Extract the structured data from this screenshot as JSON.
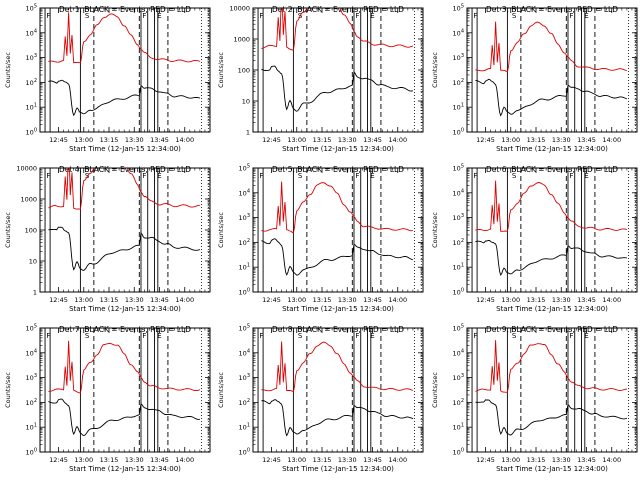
{
  "chart_data": {
    "type": "line",
    "panels": [
      {
        "title": "Det 1, BLACK = Events, RED = LLD",
        "ylabel": "Counts/sec",
        "yscale": "log",
        "ylim": [
          1,
          100000
        ],
        "ytick_labels": [
          "10^0",
          "10^1",
          "10^2",
          "10^3",
          "10^4",
          "10^5"
        ],
        "lld_level": "high"
      },
      {
        "title": "Det 2, BLACK = Events, RED = LLD",
        "ylabel": "Counts/sec",
        "yscale": "log",
        "ylim": [
          1,
          10000
        ],
        "ytick_labels": [
          "1",
          "10",
          "100",
          "1000",
          "10000"
        ],
        "lld_level": "saturated"
      },
      {
        "title": "Det 3, BLACK = Events, RED = LLD",
        "ylabel": "Counts/sec",
        "yscale": "log",
        "ylim": [
          1,
          100000
        ],
        "ytick_labels": [
          "10^0",
          "10^1",
          "10^2",
          "10^3",
          "10^4",
          "10^5"
        ],
        "lld_level": "normal"
      },
      {
        "title": "Det 4, BLACK = Events, RED = LLD",
        "ylabel": "Counts/sec",
        "yscale": "log",
        "ylim": [
          1,
          10000
        ],
        "ytick_labels": [
          "1",
          "10",
          "100",
          "1000",
          "10000"
        ],
        "lld_level": "saturated"
      },
      {
        "title": "Det 5, BLACK = Events, RED = LLD",
        "ylabel": "Counts/sec",
        "yscale": "log",
        "ylim": [
          1,
          100000
        ],
        "ytick_labels": [
          "10^0",
          "10^1",
          "10^2",
          "10^3",
          "10^4",
          "10^5"
        ],
        "lld_level": "normal"
      },
      {
        "title": "Det 6, BLACK = Events, RED = LLD",
        "ylabel": "Counts/sec",
        "yscale": "log",
        "ylim": [
          1,
          100000
        ],
        "ytick_labels": [
          "10^0",
          "10^1",
          "10^2",
          "10^3",
          "10^4",
          "10^5"
        ],
        "lld_level": "normal"
      },
      {
        "title": "Det 7, BLACK = Events, RED = LLD",
        "ylabel": "Counts/sec",
        "yscale": "log",
        "ylim": [
          1,
          100000
        ],
        "ytick_labels": [
          "10^0",
          "10^1",
          "10^2",
          "10^3",
          "10^4",
          "10^5"
        ],
        "lld_level": "normal"
      },
      {
        "title": "Det 8, BLACK = Events, RED = LLD",
        "ylabel": "Counts/sec",
        "yscale": "log",
        "ylim": [
          1,
          100000
        ],
        "ytick_labels": [
          "10^0",
          "10^1",
          "10^2",
          "10^3",
          "10^4",
          "10^5"
        ],
        "lld_level": "normal"
      },
      {
        "title": "Det 9, BLACK = Events, RED = LLD",
        "ylabel": "Counts/sec",
        "yscale": "log",
        "ylim": [
          1,
          100000
        ],
        "ytick_labels": [
          "10^0",
          "10^1",
          "10^2",
          "10^3",
          "10^4",
          "10^5"
        ],
        "lld_level": "normal"
      }
    ],
    "xlabel": "Start Time (12-Jan-15 12:34:00)",
    "x_tick_labels": [
      "12:45",
      "13:00",
      "13:15",
      "13:30",
      "13:45",
      "14:00"
    ],
    "x_ticks_min": [
      11,
      26,
      41,
      56,
      71,
      86
    ],
    "xlim_min": [
      0,
      101
    ],
    "solid_markers_min": [
      3,
      6,
      24,
      60,
      64,
      68,
      70
    ],
    "dashed_markers_min": [
      32,
      59,
      76
    ],
    "dotted_markers_min": [
      96,
      100
    ],
    "marker_letters": [
      {
        "text": "F",
        "x_min": 5
      },
      {
        "text": "S",
        "x_min": 28
      },
      {
        "text": "F",
        "x_min": 62
      },
      {
        "text": "E",
        "x_min": 71
      }
    ],
    "series": [
      {
        "name": "Events",
        "color": "#000000",
        "x_min": [
          5,
          10,
          11,
          13,
          15,
          17,
          20,
          22,
          24,
          26,
          30,
          45,
          59,
          60,
          62,
          66,
          70,
          75,
          80,
          90,
          95
        ],
        "values": [
          110,
          95,
          120,
          130,
          100,
          80,
          5,
          10,
          6,
          5,
          8,
          20,
          30,
          80,
          60,
          55,
          45,
          35,
          28,
          25,
          22
        ]
      },
      {
        "name": "LLD",
        "color": "#dd0000",
        "x_min": [
          5,
          10,
          14,
          15,
          16,
          17,
          18,
          19,
          20,
          22,
          24,
          26,
          30,
          34,
          38,
          42,
          46,
          50,
          54,
          58,
          60,
          62,
          66,
          72,
          80,
          90,
          95
        ],
        "values": [
          300,
          320,
          340,
          3000,
          500,
          30000,
          700,
          4000,
          300,
          280,
          260,
          2000,
          4000,
          9000,
          20000,
          25000,
          20000,
          9000,
          3500,
          1600,
          1000,
          700,
          450,
          380,
          340,
          330,
          320
        ]
      }
    ],
    "grid": false
  }
}
